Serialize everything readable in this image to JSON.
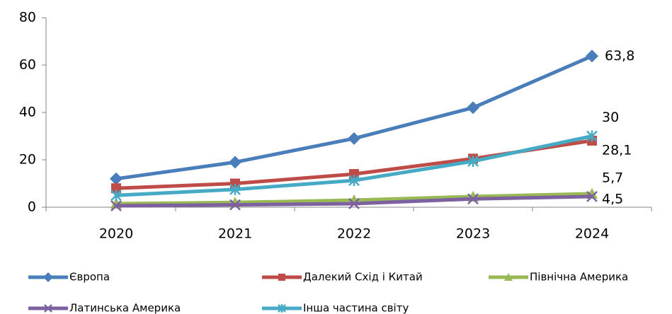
{
  "chart_data": {
    "type": "line",
    "categories": [
      "2020",
      "2021",
      "2022",
      "2023",
      "2024"
    ],
    "ylim": [
      0,
      80
    ],
    "yticks": [
      0,
      20,
      40,
      60,
      80
    ],
    "series": [
      {
        "name": "Європа",
        "color": "#4a7ebb",
        "marker": "diamond",
        "values": [
          12,
          19,
          29,
          42,
          63.8
        ],
        "value_labels": [
          null,
          null,
          null,
          null,
          "63,8"
        ]
      },
      {
        "name": "Далекий Схід і Китай",
        "color": "#be4b48",
        "marker": "square",
        "values": [
          8,
          10,
          14,
          20.5,
          28.1
        ],
        "value_labels": [
          null,
          null,
          null,
          null,
          "28,1"
        ]
      },
      {
        "name": "Північна Америка",
        "color": "#98b954",
        "marker": "triangle",
        "values": [
          1.5,
          2,
          3,
          4.5,
          5.7
        ],
        "value_labels": [
          null,
          null,
          null,
          null,
          "5,7"
        ]
      },
      {
        "name": "Латинська Америка",
        "color": "#7d60a0",
        "marker": "x",
        "values": [
          0.6,
          1,
          1.5,
          3.5,
          4.5
        ],
        "value_labels": [
          null,
          null,
          null,
          null,
          "4,5"
        ]
      },
      {
        "name": "Інша частина світу",
        "color": "#46aac5",
        "marker": "star",
        "values": [
          5,
          7.5,
          11.3,
          19.4,
          30
        ],
        "value_labels": [
          null,
          null,
          null,
          null,
          "30"
        ]
      }
    ]
  }
}
